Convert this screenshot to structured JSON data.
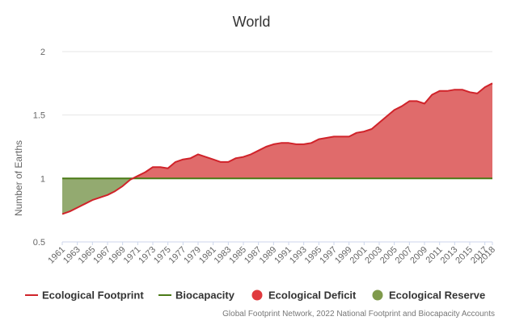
{
  "chart_data": {
    "type": "area",
    "title": "World",
    "xlabel": "",
    "ylabel": "Number of Earths",
    "ylim": [
      0.5,
      2
    ],
    "yticks": [
      "0.5",
      "1",
      "1.5",
      "2"
    ],
    "x": [
      1961,
      1962,
      1963,
      1964,
      1965,
      1966,
      1967,
      1968,
      1969,
      1970,
      1971,
      1972,
      1973,
      1974,
      1975,
      1976,
      1977,
      1978,
      1979,
      1980,
      1981,
      1982,
      1983,
      1984,
      1985,
      1986,
      1987,
      1988,
      1989,
      1990,
      1991,
      1992,
      1993,
      1994,
      1995,
      1996,
      1997,
      1998,
      1999,
      2000,
      2001,
      2002,
      2003,
      2004,
      2005,
      2006,
      2007,
      2008,
      2009,
      2010,
      2011,
      2012,
      2013,
      2014,
      2015,
      2016,
      2017,
      2018
    ],
    "xtick_labels": [
      "1961",
      "1963",
      "1965",
      "1967",
      "1969",
      "1971",
      "1973",
      "1975",
      "1977",
      "1979",
      "1981",
      "1983",
      "1985",
      "1987",
      "1989",
      "1991",
      "1993",
      "1995",
      "1997",
      "1999",
      "2001",
      "2003",
      "2005",
      "2007",
      "2009",
      "2011",
      "2013",
      "2015",
      "2017",
      "2018"
    ],
    "series": [
      {
        "name": "Ecological Footprint",
        "color": "#d0232a",
        "values": [
          0.72,
          0.74,
          0.77,
          0.8,
          0.83,
          0.85,
          0.87,
          0.9,
          0.94,
          0.99,
          1.02,
          1.05,
          1.09,
          1.09,
          1.08,
          1.13,
          1.15,
          1.16,
          1.19,
          1.17,
          1.15,
          1.13,
          1.13,
          1.16,
          1.17,
          1.19,
          1.22,
          1.25,
          1.27,
          1.28,
          1.28,
          1.27,
          1.27,
          1.28,
          1.31,
          1.32,
          1.33,
          1.33,
          1.33,
          1.36,
          1.37,
          1.39,
          1.44,
          1.49,
          1.54,
          1.57,
          1.61,
          1.61,
          1.59,
          1.66,
          1.69,
          1.69,
          1.7,
          1.7,
          1.68,
          1.67,
          1.72,
          1.75
        ]
      },
      {
        "name": "Biocapacity",
        "color": "#4a7a16",
        "values": [
          1,
          1,
          1,
          1,
          1,
          1,
          1,
          1,
          1,
          1,
          1,
          1,
          1,
          1,
          1,
          1,
          1,
          1,
          1,
          1,
          1,
          1,
          1,
          1,
          1,
          1,
          1,
          1,
          1,
          1,
          1,
          1,
          1,
          1,
          1,
          1,
          1,
          1,
          1,
          1,
          1,
          1,
          1,
          1,
          1,
          1,
          1,
          1,
          1,
          1,
          1,
          1,
          1,
          1,
          1,
          1,
          1,
          1
        ]
      }
    ],
    "legend": [
      {
        "name": "Ecological Footprint",
        "symbol": "line",
        "color": "#d0232a"
      },
      {
        "name": "Biocapacity",
        "symbol": "line",
        "color": "#4a7a16"
      },
      {
        "name": "Ecological Deficit",
        "symbol": "circle",
        "color": "#e03a3e"
      },
      {
        "name": "Ecological Reserve",
        "symbol": "circle",
        "color": "#7f9a4c"
      }
    ],
    "deficit_color": "#e06b6b",
    "reserve_color": "#93aa70",
    "legend_position": "bottom",
    "grid": true
  },
  "credits": "Global Footprint Network, 2022 National Footprint and Biocapacity Accounts"
}
